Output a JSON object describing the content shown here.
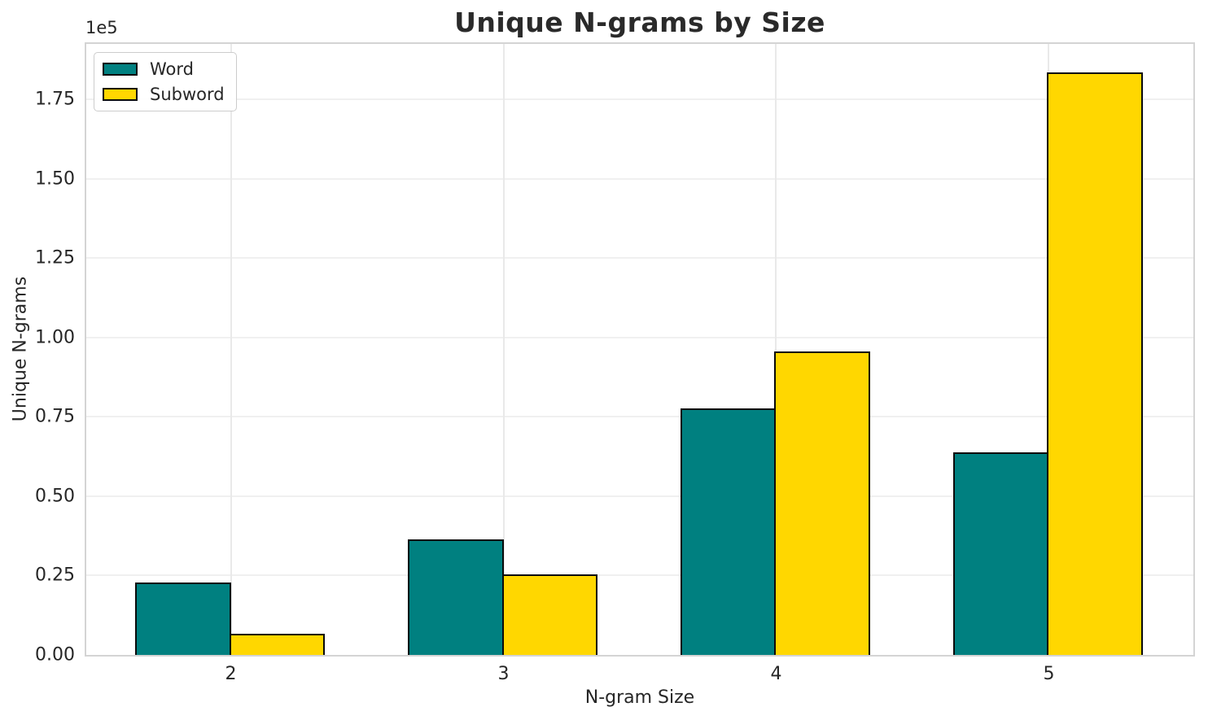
{
  "title": "Unique N-grams by Size",
  "axes": {
    "xlabel": "N-gram Size",
    "ylabel": "Unique N-grams",
    "offset_text": "1e5"
  },
  "legend": {
    "items": [
      {
        "label": "Word",
        "color": "#008080"
      },
      {
        "label": "Subword",
        "color": "#FFD700"
      }
    ]
  },
  "chart_data": {
    "type": "bar",
    "title": "Unique N-grams by Size",
    "xlabel": "N-gram Size",
    "ylabel": "Unique N-grams",
    "categories": [
      "2",
      "3",
      "4",
      "5"
    ],
    "x_values": [
      2,
      3,
      4,
      5
    ],
    "series": [
      {
        "name": "Word",
        "color": "#008080",
        "values": [
          22700,
          36400,
          77700,
          63900
        ]
      },
      {
        "name": "Subword",
        "color": "#FFD700",
        "values": [
          6600,
          25400,
          95500,
          183500
        ]
      }
    ],
    "bar_edge_color": "#0a0a0a",
    "bar_width_data_units": 0.35,
    "xlim": [
      1.47,
      5.53
    ],
    "ylim": [
      0,
      192500
    ],
    "yticks": [
      0,
      25000,
      50000,
      75000,
      100000,
      125000,
      150000,
      175000
    ],
    "ytick_labels": [
      "0.00",
      "0.25",
      "0.50",
      "0.75",
      "1.00",
      "1.25",
      "1.50",
      "1.75"
    ],
    "y_offset_label": "1e5",
    "grid": true,
    "legend_position": "upper left"
  }
}
